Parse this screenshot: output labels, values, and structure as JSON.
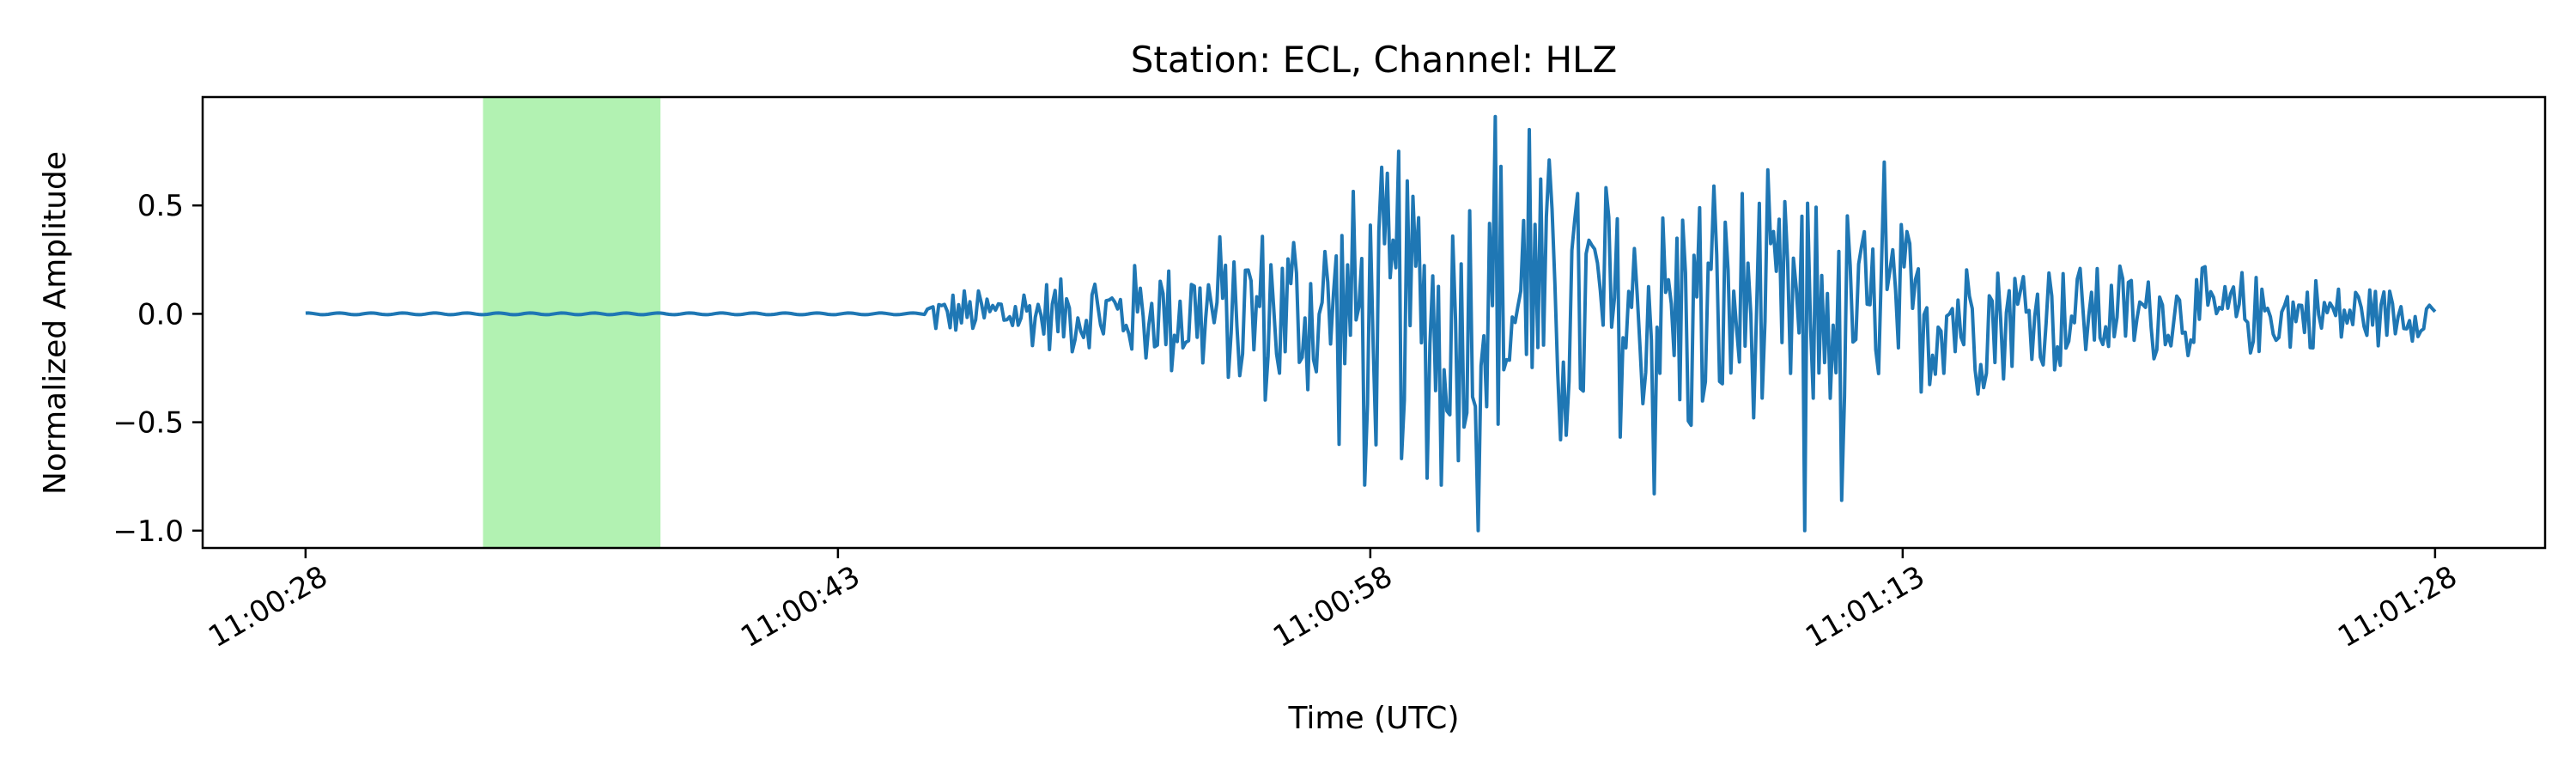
{
  "chart_data": {
    "type": "line",
    "title": "Station: ECL, Channel: HLZ",
    "xlabel": "Time (UTC)",
    "ylabel": "Normalized Amplitude",
    "x_range_seconds_of_minute": [
      25.1,
      91.1
    ],
    "x_ticks": [
      {
        "value": 28,
        "label": "11:00:28"
      },
      {
        "value": 43,
        "label": "11:00:43"
      },
      {
        "value": 58,
        "label": "11:00:58"
      },
      {
        "value": 73,
        "label": "11:01:13"
      },
      {
        "value": 88,
        "label": "11:01:28"
      }
    ],
    "ylim": [
      -1.08,
      1.0
    ],
    "y_ticks": [
      {
        "value": 0.5,
        "label": "0.5"
      },
      {
        "value": 0.0,
        "label": "0.0"
      },
      {
        "value": -0.5,
        "label": "−0.5"
      },
      {
        "value": -1.0,
        "label": "−1.0"
      }
    ],
    "highlight_window": {
      "start": 33.0,
      "end": 38.0,
      "color": "#b2f2b2"
    },
    "series": [
      {
        "color": "#1f77b4",
        "x_start": 28.0,
        "x_end": 88.0,
        "onset": 45.5,
        "envelope": [
          [
            45.5,
            0.1
          ],
          [
            48,
            0.18
          ],
          [
            51,
            0.25
          ],
          [
            53,
            0.38
          ],
          [
            56,
            0.55
          ],
          [
            59,
            0.85
          ],
          [
            62,
            0.9
          ],
          [
            65,
            0.8
          ],
          [
            68,
            0.75
          ],
          [
            71,
            0.6
          ],
          [
            74,
            0.45
          ],
          [
            77,
            0.35
          ],
          [
            80,
            0.25
          ],
          [
            83,
            0.22
          ],
          [
            86,
            0.18
          ],
          [
            88,
            0.12
          ]
        ],
        "peaks": [
          {
            "x": 61.5,
            "y": 0.91
          },
          {
            "x": 62.5,
            "y": 0.85
          },
          {
            "x": 61.0,
            "y": -1.0
          },
          {
            "x": 66.0,
            "y": -0.83
          },
          {
            "x": 70.2,
            "y": -1.0
          },
          {
            "x": 71.3,
            "y": -0.86
          },
          {
            "x": 60.0,
            "y": -0.79
          },
          {
            "x": 57.8,
            "y": -0.79
          },
          {
            "x": 72.5,
            "y": 0.7
          },
          {
            "x": 58.8,
            "y": 0.75
          }
        ]
      }
    ]
  }
}
